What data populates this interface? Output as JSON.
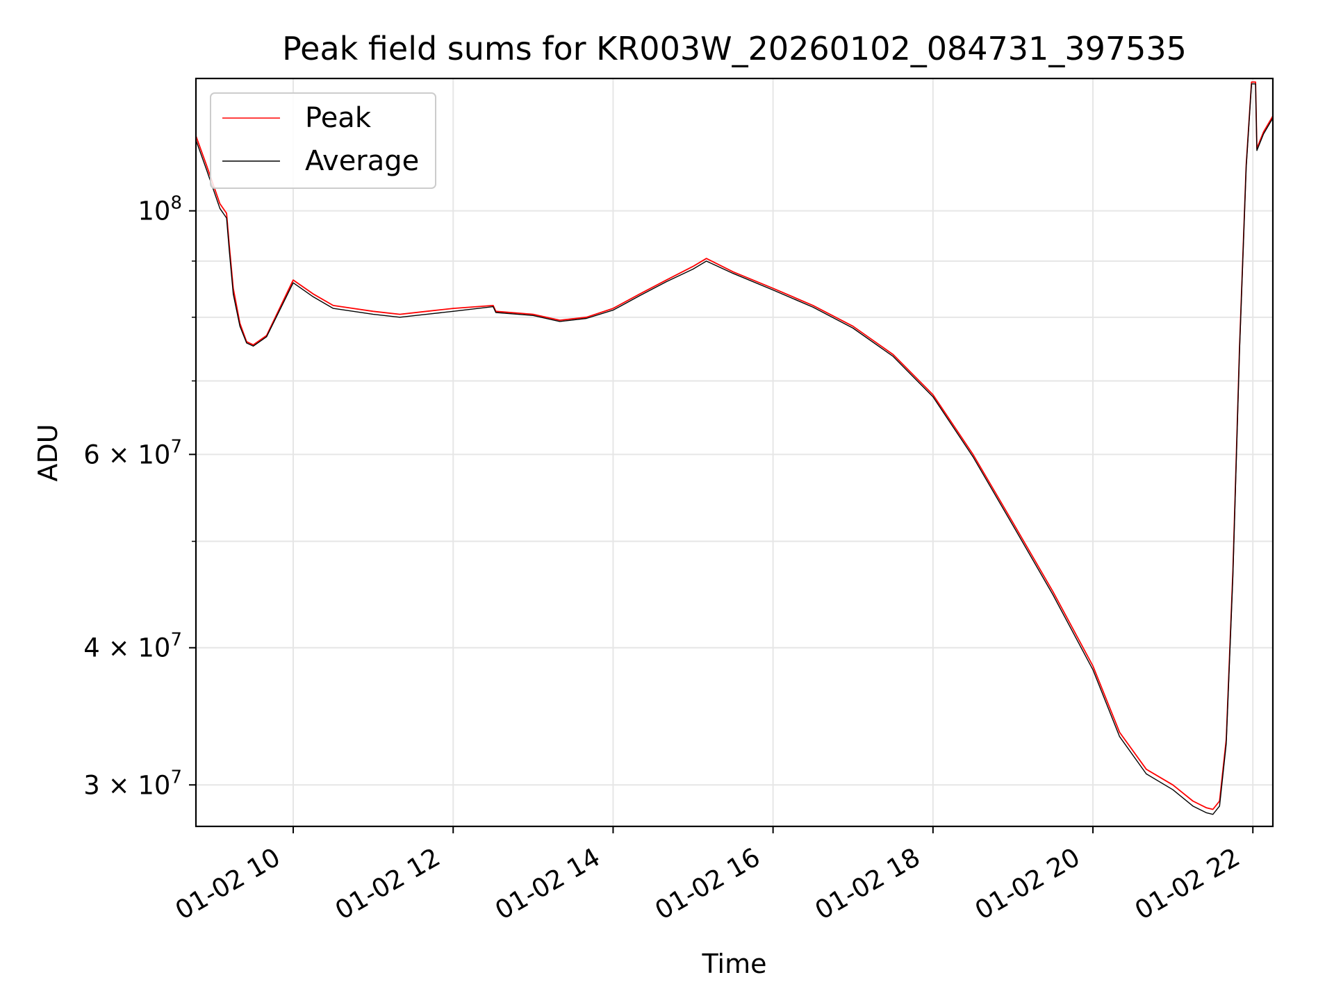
{
  "chart_data": {
    "type": "line",
    "title": "Peak field sums for KR003W_20260102_084731_397535",
    "xlabel": "Time",
    "ylabel": "ADU",
    "yscale": "log",
    "ylim": [
      27500000,
      132000000
    ],
    "xlim": [
      "2026-01-02 08:47",
      "2026-01-02 22:15"
    ],
    "grid": true,
    "legend_position": "top-left",
    "x_ticks": [
      {
        "value": "2026-01-02 10:00",
        "label": "01-02 10"
      },
      {
        "value": "2026-01-02 12:00",
        "label": "01-02 12"
      },
      {
        "value": "2026-01-02 14:00",
        "label": "01-02 14"
      },
      {
        "value": "2026-01-02 16:00",
        "label": "01-02 16"
      },
      {
        "value": "2026-01-02 18:00",
        "label": "01-02 18"
      },
      {
        "value": "2026-01-02 20:00",
        "label": "01-02 20"
      },
      {
        "value": "2026-01-02 22:00",
        "label": "01-02 22"
      }
    ],
    "y_ticks": [
      {
        "value": 100000000,
        "base": "10",
        "exp": "8"
      },
      {
        "value": 60000000,
        "base": "6 × 10",
        "exp": "7"
      },
      {
        "value": 40000000,
        "base": "4 × 10",
        "exp": "7"
      },
      {
        "value": 30000000,
        "base": "3 × 10",
        "exp": "7"
      }
    ],
    "y_minor_ticks": [
      90000000,
      80000000,
      70000000,
      50000000
    ],
    "x": [
      "2026-01-02 08:47",
      "2026-01-02 08:55",
      "2026-01-02 09:05",
      "2026-01-02 09:10",
      "2026-01-02 09:12",
      "2026-01-02 09:15",
      "2026-01-02 09:20",
      "2026-01-02 09:25",
      "2026-01-02 09:30",
      "2026-01-02 09:40",
      "2026-01-02 10:00",
      "2026-01-02 10:15",
      "2026-01-02 10:30",
      "2026-01-02 10:45",
      "2026-01-02 11:00",
      "2026-01-02 11:20",
      "2026-01-02 11:40",
      "2026-01-02 12:00",
      "2026-01-02 12:30",
      "2026-01-02 12:32",
      "2026-01-02 13:00",
      "2026-01-02 13:20",
      "2026-01-02 13:40",
      "2026-01-02 14:00",
      "2026-01-02 14:20",
      "2026-01-02 14:40",
      "2026-01-02 15:00",
      "2026-01-02 15:10",
      "2026-01-02 15:30",
      "2026-01-02 16:00",
      "2026-01-02 16:30",
      "2026-01-02 17:00",
      "2026-01-02 17:30",
      "2026-01-02 18:00",
      "2026-01-02 18:30",
      "2026-01-02 19:00",
      "2026-01-02 19:30",
      "2026-01-02 20:00",
      "2026-01-02 20:20",
      "2026-01-02 20:40",
      "2026-01-02 21:00",
      "2026-01-02 21:15",
      "2026-01-02 21:25",
      "2026-01-02 21:30",
      "2026-01-02 21:35",
      "2026-01-02 21:40",
      "2026-01-02 21:45",
      "2026-01-02 21:50",
      "2026-01-02 21:55",
      "2026-01-02 21:59",
      "2026-01-02 22:02",
      "2026-01-02 22:03",
      "2026-01-02 22:08",
      "2026-01-02 22:15"
    ],
    "series": [
      {
        "name": "Peak",
        "color": "#ff0000",
        "values": [
          117000000,
          110000000,
          101500000,
          99500000,
          93000000,
          85000000,
          79000000,
          76000000,
          75500000,
          77000000,
          86500000,
          84000000,
          82000000,
          81500000,
          81000000,
          80500000,
          81000000,
          81500000,
          82000000,
          81000000,
          80500000,
          79500000,
          80000000,
          81500000,
          84000000,
          86500000,
          89000000,
          90500000,
          88000000,
          85000000,
          82000000,
          78500000,
          74000000,
          68000000,
          60000000,
          52000000,
          45000000,
          38500000,
          33500000,
          31000000,
          30000000,
          29000000,
          28600000,
          28500000,
          29000000,
          33000000,
          47000000,
          75000000,
          110000000,
          131000000,
          131000000,
          114000000,
          118000000,
          122000000
        ]
      },
      {
        "name": "Average",
        "color": "#000000",
        "values": [
          116000000,
          109000000,
          100500000,
          98500000,
          92000000,
          84000000,
          78500000,
          75800000,
          75300000,
          76800000,
          86000000,
          83500000,
          81500000,
          81000000,
          80500000,
          80000000,
          80500000,
          81000000,
          81800000,
          80800000,
          80300000,
          79300000,
          79800000,
          81200000,
          83700000,
          86200000,
          88500000,
          90000000,
          87700000,
          84700000,
          81700000,
          78200000,
          73700000,
          67700000,
          59700000,
          51700000,
          44700000,
          38200000,
          33200000,
          30700000,
          29700000,
          28700000,
          28300000,
          28200000,
          28700000,
          32700000,
          46500000,
          74500000,
          109500000,
          130500000,
          130500000,
          113500000,
          117500000,
          121500000
        ]
      }
    ]
  }
}
